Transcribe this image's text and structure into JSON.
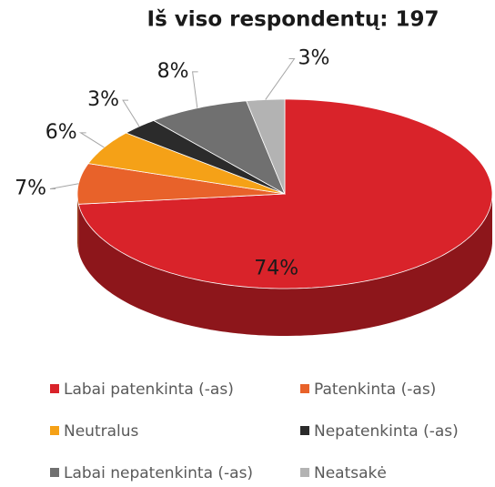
{
  "chart_data": {
    "type": "pie3d",
    "title": "Iš viso respondentų: 197",
    "categories": [
      "Labai patenkinta (-as)",
      "Patenkinta (-as)",
      "Neutralus",
      "Nepatenkinta (-as)",
      "Labai nepatenkinta (-as)",
      "Neatsakė"
    ],
    "values": [
      74,
      7,
      6,
      3,
      8,
      3
    ],
    "value_labels": [
      "74%",
      "7%",
      "6%",
      "3%",
      "8%",
      "3%"
    ],
    "colors": [
      "#d9232a",
      "#e8622a",
      "#f5a117",
      "#2b2b2b",
      "#707070",
      "#b3b3b3"
    ],
    "legend": "bottom"
  }
}
